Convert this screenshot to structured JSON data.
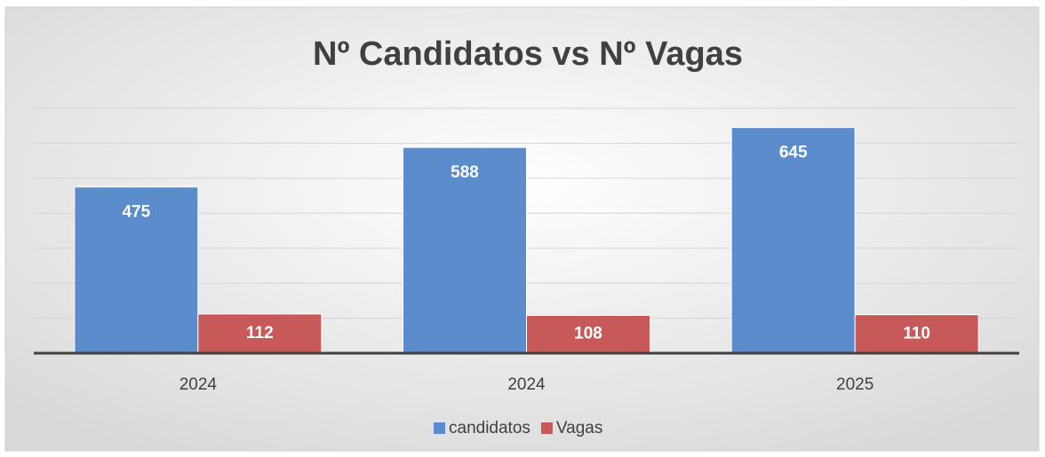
{
  "chart_data": {
    "type": "bar",
    "title": "Nº Candidatos vs Nº Vagas",
    "categories": [
      "2024",
      "2024",
      "2025"
    ],
    "series": [
      {
        "name": "candidatos",
        "color": "#5b8ccc",
        "values": [
          475,
          588,
          645
        ]
      },
      {
        "name": "Vagas",
        "color": "#c75a58",
        "values": [
          112,
          108,
          110
        ]
      }
    ],
    "ylim": [
      0,
      700
    ],
    "yticks": [
      0,
      100,
      200,
      300,
      400,
      500,
      600,
      700
    ],
    "grid": true,
    "legend": "bottom"
  }
}
